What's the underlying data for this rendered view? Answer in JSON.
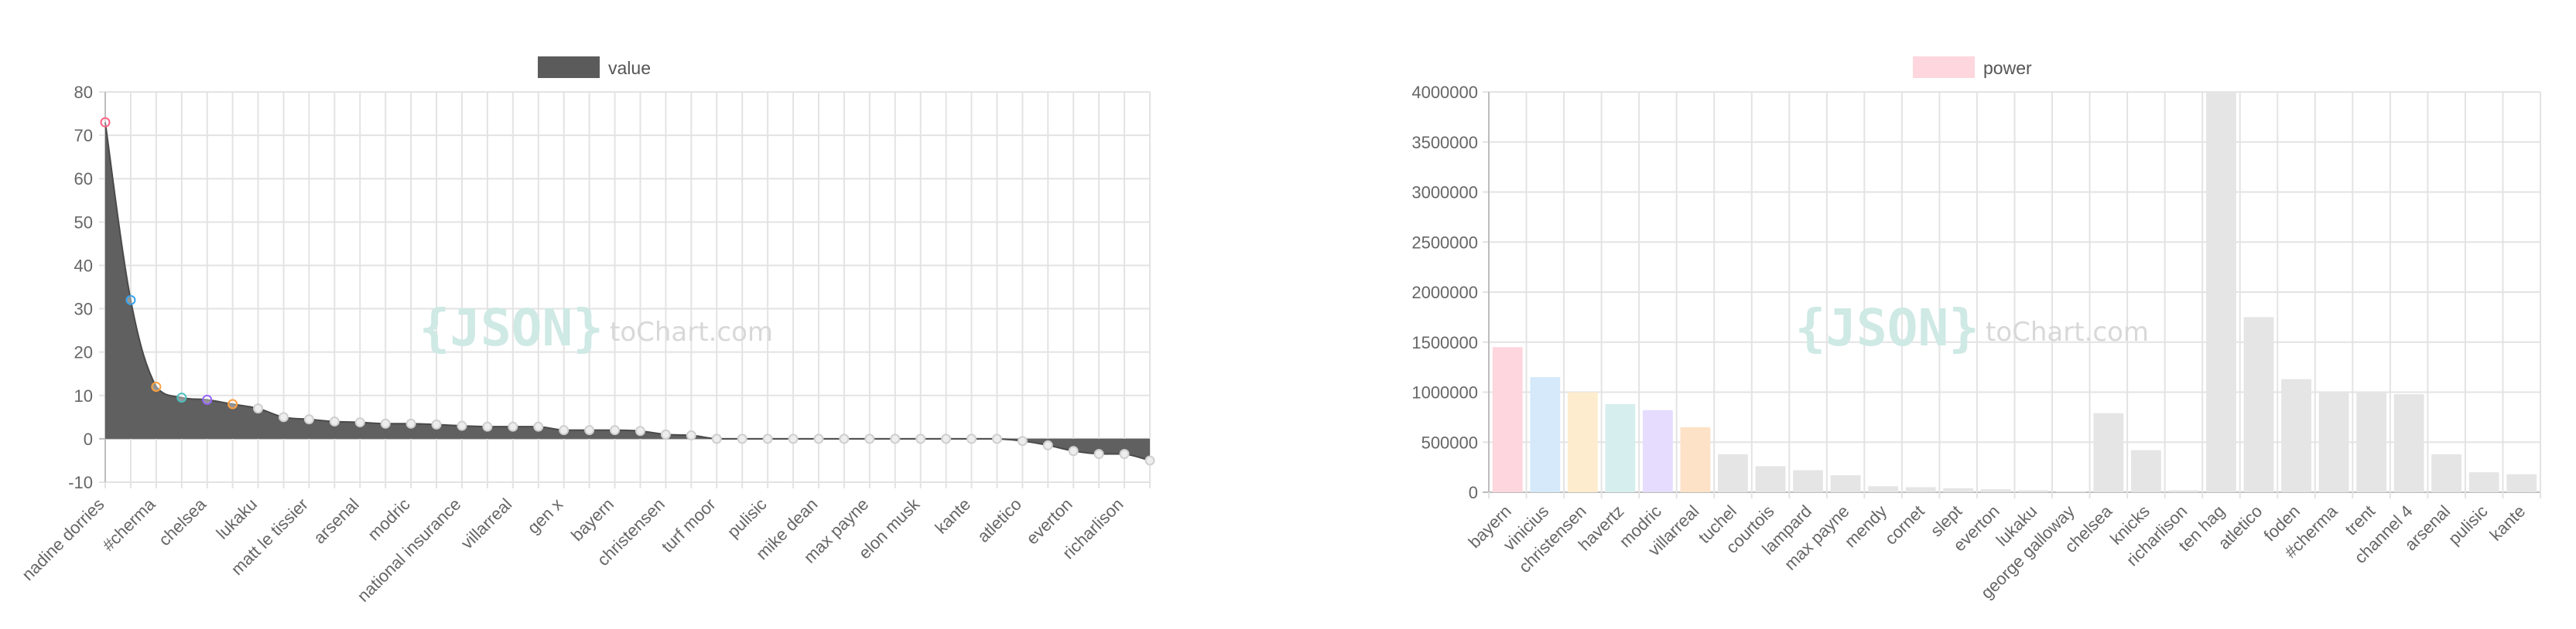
{
  "chart_data": [
    {
      "type": "area",
      "legend": {
        "label": "value",
        "color": "#5b5b5b",
        "position": "top"
      },
      "ylim": [
        -10,
        80
      ],
      "yticks": [
        -10,
        0,
        10,
        20,
        30,
        40,
        50,
        60,
        70,
        80
      ],
      "grid": true,
      "fill_color": "#5b5b5b",
      "categories": [
        "nadine dorries",
        "",
        "#cherma",
        "",
        "chelsea",
        "",
        "lukaku",
        "",
        "matt le tissier",
        "",
        "arsenal",
        "",
        "modric",
        "",
        "national insurance",
        "",
        "villarreal",
        "",
        "gen x",
        "",
        "bayern",
        "",
        "christensen",
        "",
        "turf moor",
        "",
        "pulisic",
        "",
        "mike dean",
        "",
        "max payne",
        "",
        "elon musk",
        "",
        "kante",
        "",
        "atletico",
        "",
        "everton",
        "",
        "richarlison",
        ""
      ],
      "values": [
        73,
        32,
        12,
        9.5,
        9,
        8,
        7,
        5,
        4.5,
        4,
        3.8,
        3.5,
        3.5,
        3.3,
        3,
        2.8,
        2.8,
        2.8,
        2,
        2,
        2,
        1.8,
        1,
        0.8,
        0,
        0,
        0,
        0,
        0,
        0,
        0,
        0,
        0,
        0,
        0,
        0,
        -0.5,
        -1.5,
        -2.8,
        -3.5,
        -3.5,
        -5
      ],
      "point_colors": [
        "#ff6384",
        "#36a2eb",
        "#ffa040",
        "#4bc0c0",
        "#9966ff",
        "#ffa040"
      ]
    },
    {
      "type": "bar",
      "legend": {
        "label": "power",
        "color": "#fdd6de",
        "position": "top"
      },
      "ylim": [
        0,
        4000000
      ],
      "yticks": [
        0,
        500000,
        1000000,
        1500000,
        2000000,
        2500000,
        3000000,
        3500000,
        4000000
      ],
      "grid": true,
      "categories": [
        "bayern",
        "vinicius",
        "christensen",
        "havertz",
        "modric",
        "villarreal",
        "tuchel",
        "courtois",
        "lampard",
        "max payne",
        "mendy",
        "cornet",
        "slept",
        "everton",
        "lukaku",
        "george galloway",
        "chelsea",
        "knicks",
        "richarlison",
        "ten hag",
        "atletico",
        "foden",
        "#cherma",
        "trent",
        "channel 4",
        "arsenal",
        "pulisic",
        "kante"
      ],
      "values": [
        1450000,
        1150000,
        1000000,
        880000,
        820000,
        650000,
        380000,
        260000,
        220000,
        170000,
        60000,
        50000,
        40000,
        30000,
        20000,
        10000,
        790000,
        420000,
        20000,
        4000000,
        1750000,
        1130000,
        1000000,
        1000000,
        980000,
        380000,
        200000,
        180000
      ],
      "colors": [
        "#fdd6de",
        "#d5e9fb",
        "#feeccf",
        "#d7eeee",
        "#e6dcfe",
        "#fee2c7",
        "#e5e5e5",
        "#e5e5e5",
        "#e5e5e5",
        "#e5e5e5",
        "#e5e5e5",
        "#e5e5e5",
        "#e5e5e5",
        "#e5e5e5",
        "#e5e5e5",
        "#e5e5e5",
        "#e5e5e5",
        "#e5e5e5",
        "#e5e5e5",
        "#e5e5e5",
        "#e5e5e5",
        "#e5e5e5",
        "#e5e5e5",
        "#e5e5e5",
        "#e5e5e5",
        "#e5e5e5",
        "#e5e5e5",
        "#e5e5e5"
      ]
    }
  ],
  "watermark": {
    "json": "{JSON}",
    "site": "toChart.com"
  }
}
